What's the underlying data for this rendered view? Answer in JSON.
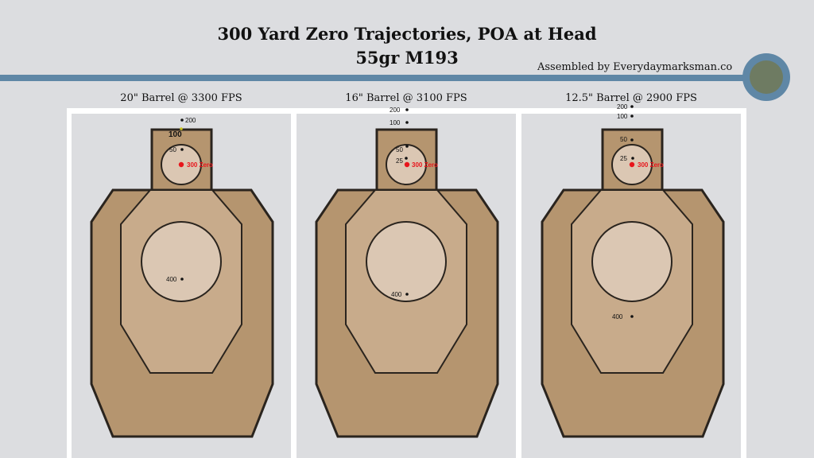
{
  "header": {
    "title_line1": "300 Yard Zero Trajectories, POA at Head",
    "title_line2": "55gr M193",
    "credit": "Assembled by Everydaymarksman.co"
  },
  "colors": {
    "accent_bar": "#5f87a6",
    "logo_center": "#6e7b62",
    "target_outer": "#b5956f",
    "target_inner": "#c8ab8b",
    "target_circle": "#dbc7b3",
    "zero_mark": "#e8151b"
  },
  "panels": [
    {
      "caption": "20\" Barrel @ 3300 FPS",
      "impacts": [
        {
          "label": "200"
        },
        {
          "label": "100"
        },
        {
          "label": "50"
        },
        {
          "label": "300 Zero",
          "zero": true
        },
        {
          "label": "400"
        }
      ]
    },
    {
      "caption": "16\" Barrel @ 3100 FPS",
      "impacts": [
        {
          "label": "200"
        },
        {
          "label": "100"
        },
        {
          "label": "50"
        },
        {
          "label": "25"
        },
        {
          "label": "300 Zero",
          "zero": true
        },
        {
          "label": "400"
        }
      ]
    },
    {
      "caption": "12.5\" Barrel @ 2900 FPS",
      "impacts": [
        {
          "label": "200"
        },
        {
          "label": "100"
        },
        {
          "label": "50"
        },
        {
          "label": "25"
        },
        {
          "label": "300 Zero",
          "zero": true
        },
        {
          "label": "400"
        }
      ]
    }
  ]
}
